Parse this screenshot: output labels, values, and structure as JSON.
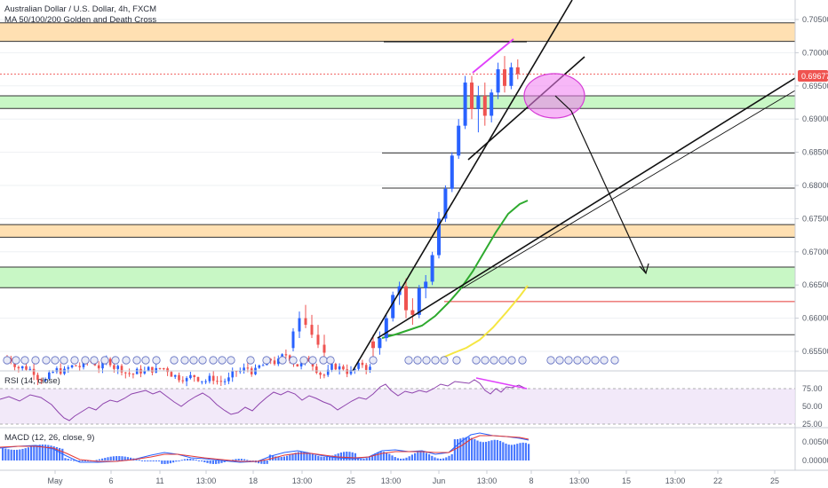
{
  "header": {
    "title": "Australian Dollar / U.S. Dollar, 4h, FXCM",
    "indicator": "MA 50/100/200 Golden and Death Cross"
  },
  "price_axis": {
    "ticks": [
      "0.70500",
      "0.70000",
      "0.69500",
      "0.69000",
      "0.68500",
      "0.68000",
      "0.67500",
      "0.67000",
      "0.66500",
      "0.66000",
      "0.65500"
    ],
    "last_price": "0.69677",
    "last_price_color": "#ef5350"
  },
  "rsi_panel": {
    "label": "RSI (14, close)",
    "ticks": [
      "75.00",
      "50.00",
      "25.00"
    ]
  },
  "macd_panel": {
    "label": "MACD (12, 26, close, 9)",
    "ticks": [
      "0.00500",
      "0.00000"
    ]
  },
  "time_axis": {
    "ticks": [
      "May",
      "6",
      "11",
      "13:00",
      "18",
      "13:00",
      "25",
      "13:00",
      "Jun",
      "13:00",
      "8",
      "13:00",
      "15",
      "13:00",
      "22",
      "25"
    ]
  },
  "colors": {
    "up": "#2962ff",
    "down": "#ef5350",
    "resistance_zone": "#ffe0b2",
    "support_zone": "#c8f7c5",
    "ma_green": "#2eaa2e",
    "ma_yellow": "#f5e642",
    "rsi_line": "#8e44ad",
    "macd_line": "#2962ff",
    "signal_line": "#e53935",
    "ellipse": "#f07cf0"
  },
  "chart_data": {
    "type": "candlestick",
    "title": "Australian Dollar / U.S. Dollar, 4h, FXCM",
    "ylim": [
      0.6525,
      0.7075
    ],
    "zones": [
      {
        "kind": "resistance",
        "from": 0.7045,
        "to": 0.7017
      },
      {
        "kind": "support",
        "from": 0.6935,
        "to": 0.6916
      },
      {
        "kind": "resistance",
        "from": 0.6741,
        "to": 0.6722
      },
      {
        "kind": "support",
        "from": 0.6677,
        "to": 0.6646
      }
    ],
    "horizontal_levels": [
      0.6849,
      0.6796,
      0.6625,
      0.6575
    ],
    "candles_approx": [
      [
        0.6565,
        0.6575,
        0.654,
        0.6555
      ],
      [
        0.6555,
        0.658,
        0.6545,
        0.657
      ],
      [
        0.657,
        0.6605,
        0.6565,
        0.66
      ],
      [
        0.66,
        0.664,
        0.6595,
        0.6635
      ],
      [
        0.6635,
        0.6655,
        0.662,
        0.6648
      ],
      [
        0.6648,
        0.666,
        0.66,
        0.6612
      ],
      [
        0.6612,
        0.663,
        0.659,
        0.6605
      ],
      [
        0.6605,
        0.665,
        0.66,
        0.6645
      ],
      [
        0.6645,
        0.6665,
        0.663,
        0.6655
      ],
      [
        0.6655,
        0.67,
        0.665,
        0.6695
      ],
      [
        0.6695,
        0.676,
        0.669,
        0.675
      ],
      [
        0.675,
        0.68,
        0.6745,
        0.6795
      ],
      [
        0.6795,
        0.685,
        0.679,
        0.6845
      ],
      [
        0.6845,
        0.69,
        0.684,
        0.689
      ],
      [
        0.689,
        0.6965,
        0.6885,
        0.6955
      ],
      [
        0.6955,
        0.6965,
        0.69,
        0.6915
      ],
      [
        0.6915,
        0.695,
        0.688,
        0.6935
      ],
      [
        0.6935,
        0.6955,
        0.689,
        0.6905
      ],
      [
        0.6905,
        0.6945,
        0.6895,
        0.694
      ],
      [
        0.694,
        0.6985,
        0.693,
        0.6975
      ],
      [
        0.6975,
        0.6995,
        0.694,
        0.695
      ],
      [
        0.695,
        0.6985,
        0.6945,
        0.6978
      ],
      [
        0.6978,
        0.699,
        0.696,
        0.6968
      ]
    ]
  }
}
